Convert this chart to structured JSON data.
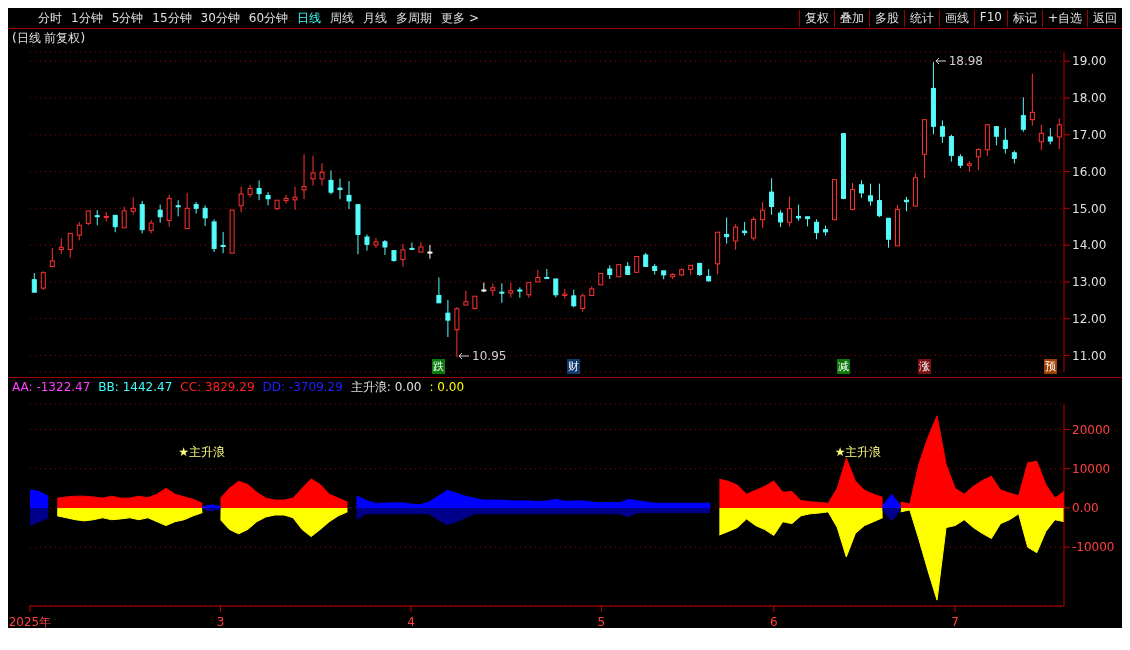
{
  "chart_data": [
    {
      "type": "candlestick",
      "title": "(日线 前复权)",
      "ohlc": [
        [
          13.06,
          13.24,
          12.72,
          12.72
        ],
        [
          12.83,
          13.29,
          12.78,
          13.25
        ],
        [
          13.42,
          13.92,
          13.4,
          13.57
        ],
        [
          13.88,
          14.19,
          13.76,
          13.94
        ],
        [
          13.88,
          14.32,
          13.66,
          14.32
        ],
        [
          14.27,
          14.63,
          14.13,
          14.54
        ],
        [
          14.59,
          14.93,
          14.54,
          14.93
        ],
        [
          14.8,
          14.95,
          14.54,
          14.78
        ],
        [
          14.76,
          14.9,
          14.64,
          14.78
        ],
        [
          14.81,
          14.81,
          14.35,
          14.5
        ],
        [
          14.47,
          15.04,
          14.47,
          14.93
        ],
        [
          14.92,
          15.3,
          14.83,
          15.0
        ],
        [
          15.1,
          15.2,
          14.32,
          14.42
        ],
        [
          14.4,
          14.68,
          14.32,
          14.6
        ],
        [
          14.95,
          15.1,
          14.61,
          14.77
        ],
        [
          14.67,
          15.37,
          14.5,
          15.27
        ],
        [
          15.07,
          15.22,
          14.78,
          15.06
        ],
        [
          14.45,
          15.42,
          14.45,
          15.0
        ],
        [
          15.1,
          15.17,
          14.86,
          15.0
        ],
        [
          15.0,
          15.08,
          14.52,
          14.74
        ],
        [
          14.63,
          14.7,
          13.81,
          13.91
        ],
        [
          13.99,
          14.36,
          13.78,
          13.97
        ],
        [
          13.78,
          14.95,
          13.78,
          14.95
        ],
        [
          15.07,
          15.59,
          14.89,
          15.39
        ],
        [
          15.38,
          15.64,
          15.3,
          15.54
        ],
        [
          15.54,
          15.76,
          15.22,
          15.4
        ],
        [
          15.35,
          15.44,
          15.08,
          15.26
        ],
        [
          14.99,
          15.22,
          14.95,
          15.22
        ],
        [
          15.21,
          15.37,
          15.13,
          15.27
        ],
        [
          15.23,
          15.59,
          14.96,
          15.3
        ],
        [
          15.5,
          16.47,
          15.25,
          15.59
        ],
        [
          15.8,
          16.43,
          15.62,
          15.96
        ],
        [
          15.8,
          16.23,
          15.62,
          15.98
        ],
        [
          15.76,
          16.03,
          15.38,
          15.44
        ],
        [
          15.55,
          15.81,
          15.25,
          15.51
        ],
        [
          15.35,
          15.74,
          14.98,
          15.2
        ],
        [
          15.1,
          15.1,
          13.75,
          14.29
        ],
        [
          14.22,
          14.29,
          13.85,
          14.02
        ],
        [
          14.0,
          14.19,
          13.92,
          14.09
        ],
        [
          14.09,
          14.14,
          13.73,
          13.95
        ],
        [
          13.85,
          13.85,
          13.55,
          13.58
        ],
        [
          13.61,
          14.04,
          13.41,
          13.87
        ],
        [
          13.91,
          14.07,
          13.87,
          13.89
        ],
        [
          13.81,
          14.09,
          13.81,
          13.95
        ],
        [
          13.81,
          14.0,
          13.63,
          13.81
        ],
        [
          12.63,
          13.12,
          12.43,
          12.43
        ],
        [
          12.15,
          12.51,
          11.5,
          11.96
        ],
        [
          11.7,
          12.31,
          10.95,
          12.27
        ],
        [
          12.37,
          12.76,
          12.37,
          12.46
        ],
        [
          12.28,
          12.61,
          12.25,
          12.61
        ],
        [
          12.78,
          12.98,
          12.72,
          12.78
        ],
        [
          12.77,
          12.95,
          12.62,
          12.84
        ],
        [
          12.72,
          12.96,
          12.43,
          12.7
        ],
        [
          12.7,
          12.98,
          12.57,
          12.76
        ],
        [
          12.78,
          12.85,
          12.57,
          12.75
        ],
        [
          12.65,
          12.98,
          12.57,
          12.98
        ],
        [
          13.0,
          13.33,
          13.0,
          13.12
        ],
        [
          13.12,
          13.35,
          13.08,
          13.1
        ],
        [
          13.08,
          13.08,
          12.58,
          12.65
        ],
        [
          12.63,
          12.81,
          12.55,
          12.67
        ],
        [
          12.62,
          12.79,
          12.31,
          12.35
        ],
        [
          12.28,
          12.69,
          12.19,
          12.62
        ],
        [
          12.63,
          12.88,
          12.63,
          12.81
        ],
        [
          12.92,
          13.23,
          12.92,
          13.23
        ],
        [
          13.35,
          13.45,
          13.08,
          13.2
        ],
        [
          13.14,
          13.47,
          13.14,
          13.47
        ],
        [
          13.42,
          13.54,
          13.19,
          13.2
        ],
        [
          13.26,
          13.69,
          13.26,
          13.69
        ],
        [
          13.73,
          13.79,
          13.41,
          13.42
        ],
        [
          13.42,
          13.49,
          13.2,
          13.31
        ],
        [
          13.3,
          13.3,
          13.07,
          13.19
        ],
        [
          13.14,
          13.24,
          13.08,
          13.2
        ],
        [
          13.19,
          13.37,
          13.16,
          13.33
        ],
        [
          13.34,
          13.45,
          13.19,
          13.45
        ],
        [
          13.5,
          13.52,
          13.16,
          13.2
        ],
        [
          13.15,
          13.35,
          13.0,
          13.03
        ],
        [
          13.49,
          14.35,
          13.21,
          14.35
        ],
        [
          14.29,
          14.75,
          14.04,
          14.23
        ],
        [
          14.11,
          14.57,
          13.87,
          14.49
        ],
        [
          14.38,
          14.63,
          14.26,
          14.34
        ],
        [
          14.19,
          14.77,
          14.12,
          14.7
        ],
        [
          14.69,
          15.17,
          14.47,
          14.95
        ],
        [
          15.44,
          15.82,
          14.82,
          15.05
        ],
        [
          14.87,
          14.95,
          14.49,
          14.63
        ],
        [
          14.62,
          15.32,
          14.51,
          14.99
        ],
        [
          14.78,
          15.1,
          14.66,
          14.74
        ],
        [
          14.77,
          14.77,
          14.51,
          14.72
        ],
        [
          14.62,
          14.7,
          14.16,
          14.34
        ],
        [
          14.42,
          14.53,
          14.26,
          14.36
        ],
        [
          14.69,
          15.78,
          14.69,
          15.78
        ],
        [
          17.03,
          17.03,
          15.25,
          15.27
        ],
        [
          14.97,
          15.69,
          14.94,
          15.51
        ],
        [
          15.64,
          15.76,
          15.29,
          15.42
        ],
        [
          15.34,
          15.67,
          15.07,
          15.2
        ],
        [
          15.21,
          15.67,
          14.76,
          14.8
        ],
        [
          14.73,
          14.73,
          13.93,
          14.16
        ],
        [
          13.98,
          15.09,
          13.98,
          14.97
        ],
        [
          15.22,
          15.31,
          14.92,
          15.18
        ],
        [
          15.06,
          15.95,
          15.06,
          15.83
        ],
        [
          16.47,
          17.41,
          15.82,
          17.41
        ],
        [
          18.26,
          18.98,
          17.01,
          17.23
        ],
        [
          17.22,
          17.39,
          16.78,
          16.96
        ],
        [
          16.95,
          17.0,
          16.27,
          16.44
        ],
        [
          16.4,
          16.47,
          16.09,
          16.17
        ],
        [
          16.17,
          16.28,
          16.0,
          16.21
        ],
        [
          16.4,
          16.63,
          16.04,
          16.6
        ],
        [
          16.59,
          17.29,
          16.42,
          17.27
        ],
        [
          17.22,
          17.22,
          16.71,
          16.96
        ],
        [
          16.85,
          17.19,
          16.49,
          16.63
        ],
        [
          16.51,
          16.57,
          16.22,
          16.36
        ],
        [
          17.52,
          18.02,
          17.08,
          17.15
        ],
        [
          17.41,
          18.66,
          17.25,
          17.61
        ],
        [
          16.81,
          17.27,
          16.58,
          17.04
        ],
        [
          16.94,
          17.18,
          16.74,
          16.83
        ],
        [
          16.94,
          17.44,
          16.61,
          17.27
        ]
      ],
      "colors": [
        "#54fcfc",
        "#ff3232",
        "#ff3232",
        "#ff3232",
        "#ff3232",
        "#ff3232",
        "#ff3232",
        "#54fcfc",
        "#ff3232",
        "#54fcfc",
        "#ff3232",
        "#ff3232",
        "#54fcfc",
        "#ff3232",
        "#54fcfc",
        "#ff3232",
        "#54fcfc",
        "#ff3232",
        "#54fcfc",
        "#54fcfc",
        "#54fcfc",
        "#54fcfc",
        "#ff3232",
        "#ff3232",
        "#ff3232",
        "#54fcfc",
        "#54fcfc",
        "#ff3232",
        "#ff3232",
        "#ff3232",
        "#ff3232",
        "#ff3232",
        "#ff3232",
        "#54fcfc",
        "#54fcfc",
        "#54fcfc",
        "#54fcfc",
        "#54fcfc",
        "#ff3232",
        "#54fcfc",
        "#54fcfc",
        "#ff3232",
        "#54fcfc",
        "#ff3232",
        "#ffffff",
        "#54fcfc",
        "#54fcfc",
        "#ff3232",
        "#ff3232",
        "#ff3232",
        "#ffffff",
        "#ff3232",
        "#54fcfc",
        "#ff3232",
        "#54fcfc",
        "#ff3232",
        "#ff3232",
        "#54fcfc",
        "#54fcfc",
        "#ff3232",
        "#54fcfc",
        "#ff3232",
        "#ff3232",
        "#ff3232",
        "#54fcfc",
        "#ff3232",
        "#54fcfc",
        "#ff3232",
        "#54fcfc",
        "#54fcfc",
        "#54fcfc",
        "#ff3232",
        "#ff3232",
        "#ff3232",
        "#54fcfc",
        "#54fcfc",
        "#ff3232",
        "#54fcfc",
        "#ff3232",
        "#54fcfc",
        "#ff3232",
        "#ff3232",
        "#54fcfc",
        "#54fcfc",
        "#ff3232",
        "#54fcfc",
        "#54fcfc",
        "#54fcfc",
        "#54fcfc",
        "#ff3232",
        "#54fcfc",
        "#ff3232",
        "#54fcfc",
        "#54fcfc",
        "#54fcfc",
        "#54fcfc",
        "#ff3232",
        "#54fcfc",
        "#ff3232",
        "#ff3232",
        "#54fcfc",
        "#54fcfc",
        "#54fcfc",
        "#54fcfc",
        "#ff3232",
        "#ff3232",
        "#ff3232",
        "#54fcfc",
        "#54fcfc",
        "#54fcfc",
        "#54fcfc",
        "#ff3232",
        "#ff3232",
        "#54fcfc",
        "#ff3232"
      ],
      "ylim": [
        10.55,
        19.25
      ],
      "yticks": [
        {
          "value": 11,
          "label": "11.00"
        },
        {
          "value": 12,
          "label": "12.00"
        },
        {
          "value": 13,
          "label": "13.00"
        },
        {
          "value": 14,
          "label": "14.00"
        },
        {
          "value": 15,
          "label": "15.00"
        },
        {
          "value": 16,
          "label": "16.00"
        },
        {
          "value": 17,
          "label": "17.00"
        },
        {
          "value": 18,
          "label": "18.00"
        },
        {
          "value": 19,
          "label": "19.00"
        }
      ],
      "grid": "y",
      "annotations": [
        "分时",
        "1分钟",
        "5分钟",
        "15分钟",
        "30分钟",
        "60分钟",
        "日线",
        "周线",
        "月线",
        "多周期",
        "更多 >",
        "复权",
        "叠加",
        "多股",
        "统计",
        "画线",
        "F10",
        "标记",
        "+自选",
        "返回",
        "跌",
        "财",
        "减",
        "涨",
        "预",
        "10.95",
        "18.98"
      ]
    },
    {
      "type": "area",
      "categories": [
        "2025年",
        null,
        null,
        null,
        null,
        null,
        null,
        null,
        null,
        null,
        null,
        null,
        null,
        null,
        null,
        null,
        null,
        null,
        null,
        null,
        null,
        "3",
        null,
        null,
        null,
        null,
        null,
        null,
        null,
        null,
        null,
        null,
        null,
        null,
        null,
        null,
        null,
        null,
        null,
        null,
        null,
        null,
        "4",
        null,
        null,
        null,
        null,
        null,
        null,
        null,
        null,
        null,
        null,
        null,
        null,
        null,
        null,
        null,
        null,
        null,
        null,
        null,
        null,
        "5",
        null,
        null,
        null,
        null,
        null,
        null,
        null,
        null,
        null,
        null,
        null,
        null,
        null,
        null,
        null,
        null,
        null,
        null,
        "6",
        null,
        null,
        null,
        null,
        null,
        null,
        null,
        null,
        null,
        null,
        null,
        null,
        null,
        null,
        null,
        null,
        null,
        null,
        null,
        "7",
        null,
        null,
        null,
        null,
        null,
        null,
        null,
        null,
        null,
        null,
        null,
        null
      ],
      "series": [
        {
          "color": "#ff0000",
          "values": [
            null,
            null,
            null,
            2500,
            2800,
            3000,
            3000,
            2800,
            2500,
            3000,
            2500,
            2500,
            3000,
            2600,
            3500,
            5000,
            3500,
            2800,
            2200,
            1200,
            null,
            2500,
            5000,
            6800,
            6000,
            4000,
            2500,
            2000,
            2000,
            2500,
            5000,
            7400,
            6000,
            3500,
            2500,
            1500,
            null,
            null,
            null,
            null,
            null,
            null,
            null,
            null,
            null,
            null,
            null,
            null,
            null,
            null,
            null,
            null,
            null,
            null,
            null,
            null,
            null,
            null,
            null,
            null,
            null,
            null,
            null,
            null,
            null,
            null,
            null,
            null,
            null,
            null,
            null,
            null,
            null,
            null,
            null,
            null,
            7300,
            6800,
            5800,
            3500,
            4500,
            5500,
            6900,
            4000,
            4200,
            1900,
            1600,
            1400,
            1200,
            5000,
            12700,
            6900,
            4500,
            3500,
            2700,
            null,
            1500,
            1000,
            11200,
            18000,
            23500,
            11200,
            5000,
            3500,
            5500,
            7000,
            8100,
            4600,
            3800,
            3100,
            11500,
            11900,
            6000,
            2500,
            4200
          ]
        },
        {
          "color": "#0000ff",
          "values": [
            4600,
            4200,
            3000,
            null,
            null,
            null,
            null,
            null,
            null,
            null,
            null,
            null,
            null,
            null,
            null,
            null,
            null,
            null,
            null,
            300,
            800,
            300,
            null,
            null,
            null,
            null,
            null,
            null,
            null,
            null,
            null,
            null,
            null,
            null,
            null,
            null,
            3100,
            2000,
            1200,
            1200,
            1300,
            1300,
            1000,
            800,
            1500,
            3000,
            4500,
            3800,
            3000,
            2500,
            2000,
            2000,
            2000,
            1800,
            1800,
            1800,
            1600,
            1800,
            2200,
            1700,
            1800,
            1800,
            1500,
            1300,
            1400,
            1300,
            2200,
            1800,
            1500,
            1200,
            1200,
            1200,
            1200,
            1200,
            1200,
            1200,
            null,
            null,
            null,
            null,
            null,
            null,
            null,
            null,
            null,
            null,
            null,
            null,
            null,
            null,
            null,
            null,
            null,
            null,
            500,
            3500,
            500,
            null,
            null,
            null,
            null,
            null,
            null,
            null,
            null,
            null,
            null,
            null,
            null,
            null,
            null,
            null,
            null,
            null,
            null
          ]
        },
        {
          "color": "#ffff00",
          "values": [
            null,
            null,
            null,
            -2000,
            -2500,
            -3000,
            -3300,
            -3000,
            -2500,
            -3000,
            -2800,
            -2500,
            -3000,
            -2500,
            -3500,
            -4500,
            -3500,
            -3000,
            -2000,
            -1200,
            null,
            -3000,
            -5500,
            -6600,
            -5500,
            -3500,
            -2300,
            -1800,
            -1800,
            -2500,
            -5500,
            -7300,
            -5500,
            -3500,
            -2000,
            -1000,
            null,
            null,
            null,
            null,
            null,
            null,
            null,
            null,
            null,
            null,
            null,
            null,
            null,
            null,
            null,
            null,
            null,
            null,
            null,
            null,
            null,
            null,
            null,
            null,
            null,
            null,
            null,
            null,
            null,
            null,
            null,
            null,
            null,
            null,
            null,
            null,
            null,
            null,
            null,
            null,
            -6900,
            -6000,
            -5000,
            -2800,
            -4500,
            -5500,
            -7000,
            -3500,
            -4000,
            -2000,
            -1500,
            -1300,
            -1000,
            -5000,
            -12500,
            -6500,
            -4500,
            -3500,
            -2500,
            null,
            -1000,
            -500,
            -8000,
            -16000,
            -23500,
            -5000,
            -4500,
            -3000,
            -5000,
            -6500,
            -7800,
            -4000,
            -3000,
            -1500,
            -10000,
            -11400,
            -6000,
            -3000,
            -3500
          ]
        },
        {
          "color": "#00008b",
          "values": [
            -4500,
            -3500,
            -2500,
            null,
            null,
            null,
            null,
            null,
            null,
            null,
            null,
            null,
            null,
            null,
            null,
            null,
            null,
            null,
            null,
            -300,
            -800,
            -300,
            null,
            null,
            null,
            null,
            null,
            null,
            null,
            null,
            null,
            null,
            null,
            null,
            null,
            null,
            -3000,
            -1500,
            -1500,
            -1500,
            -1500,
            -1500,
            -1500,
            -1500,
            -1500,
            -3000,
            -4300,
            -3500,
            -2500,
            -1500,
            -1500,
            -1500,
            -1500,
            -1500,
            -1500,
            -1500,
            -1500,
            -1500,
            -1500,
            -1500,
            -1500,
            -1500,
            -1500,
            -1500,
            -1500,
            -1500,
            -2200,
            -1200,
            -1200,
            -1200,
            -1200,
            -1200,
            -1200,
            -1200,
            -1200,
            -1200,
            null,
            null,
            null,
            null,
            null,
            null,
            null,
            null,
            null,
            null,
            null,
            null,
            null,
            null,
            null,
            null,
            null,
            null,
            -500,
            -3300,
            -500,
            null,
            null,
            null,
            null,
            null,
            null,
            null,
            null,
            null,
            null,
            null,
            null,
            null,
            null,
            null,
            null,
            null,
            null
          ]
        }
      ],
      "ylim": [
        -25000,
        26500
      ],
      "yticks": [
        20000,
        10000,
        {
          "value": 0,
          "label": "0.00"
        },
        -10000
      ],
      "grid": "y",
      "annotations": [
        "AA: -1322.47",
        "BB: 1442.47",
        "CC: 3829.29",
        "DD: -3709.29",
        "主升浪: 0.00",
        ": 0.00",
        "★主升浪",
        "★主升浪"
      ]
    }
  ]
}
